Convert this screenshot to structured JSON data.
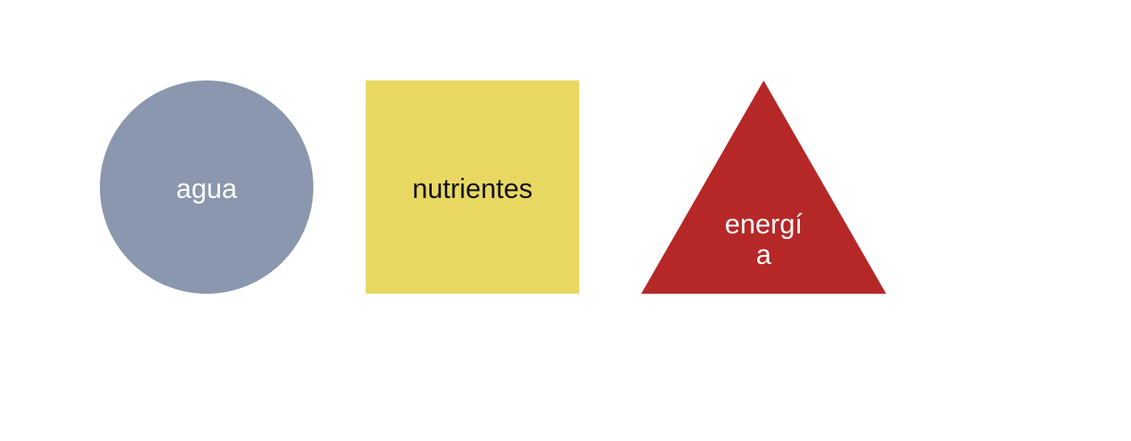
{
  "shapes": {
    "circle": {
      "label": "agua",
      "color": "#8a97ae",
      "text_color": "#ffffff"
    },
    "square": {
      "label": "nutrientes",
      "color": "#e8d862",
      "text_color": "#111111"
    },
    "triangle": {
      "label": "energí\na",
      "color": "#b62827",
      "text_color": "#ffffff"
    }
  }
}
